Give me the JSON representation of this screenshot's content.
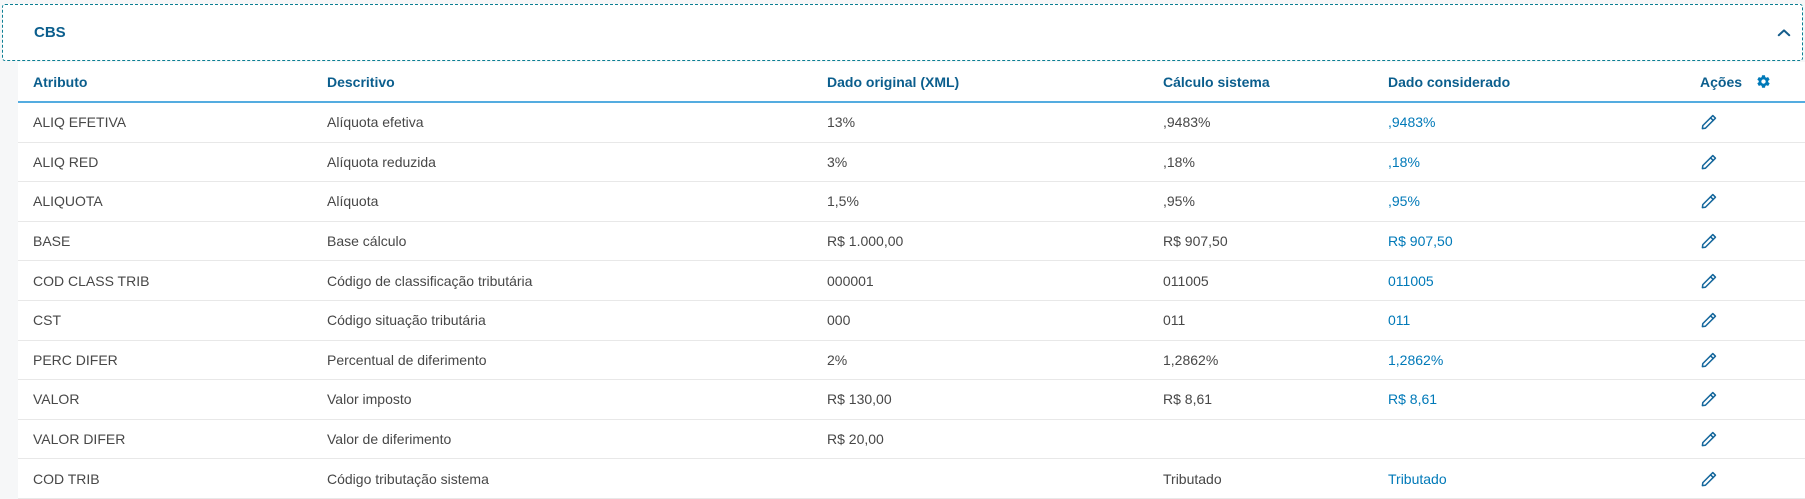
{
  "panel": {
    "title": "CBS"
  },
  "table": {
    "columns": [
      "Atributo",
      "Descritivo",
      "Dado original (XML)",
      "Cálculo sistema",
      "Dado considerado",
      "Ações"
    ],
    "rows": [
      {
        "atributo": "ALIQ EFETIVA",
        "descritivo": "Alíquota efetiva",
        "dado_original": "13%",
        "calculo_sistema": ",9483%",
        "dado_considerado": ",9483%"
      },
      {
        "atributo": "ALIQ RED",
        "descritivo": "Alíquota reduzida",
        "dado_original": "3%",
        "calculo_sistema": ",18%",
        "dado_considerado": ",18%"
      },
      {
        "atributo": "ALIQUOTA",
        "descritivo": "Alíquota",
        "dado_original": "1,5%",
        "calculo_sistema": ",95%",
        "dado_considerado": ",95%"
      },
      {
        "atributo": "BASE",
        "descritivo": "Base cálculo",
        "dado_original": "R$ 1.000,00",
        "calculo_sistema": "R$ 907,50",
        "dado_considerado": "R$ 907,50"
      },
      {
        "atributo": "COD CLASS TRIB",
        "descritivo": "Código de classificação tributária",
        "dado_original": "000001",
        "calculo_sistema": "011005",
        "dado_considerado": "011005"
      },
      {
        "atributo": "CST",
        "descritivo": "Código situação tributária",
        "dado_original": "000",
        "calculo_sistema": "011",
        "dado_considerado": "011"
      },
      {
        "atributo": "PERC DIFER",
        "descritivo": "Percentual de diferimento",
        "dado_original": "2%",
        "calculo_sistema": "1,2862%",
        "dado_considerado": "1,2862%"
      },
      {
        "atributo": "VALOR",
        "descritivo": "Valor imposto",
        "dado_original": "R$ 130,00",
        "calculo_sistema": "R$ 8,61",
        "dado_considerado": "R$ 8,61"
      },
      {
        "atributo": "VALOR DIFER",
        "descritivo": "Valor de diferimento",
        "dado_original": "R$ 20,00",
        "calculo_sistema": "",
        "dado_considerado": ""
      },
      {
        "atributo": "COD TRIB",
        "descritivo": "Código tributação sistema",
        "dado_original": "",
        "calculo_sistema": "Tributado",
        "dado_considerado": "Tributado"
      }
    ]
  },
  "icons": {
    "collapse": "chevron-up-icon",
    "settings": "gear-icon",
    "row_action": "edit-pencil-icon"
  },
  "colors": {
    "header_blue": "#0b5e8d",
    "link_blue": "#0079b8",
    "header_underline": "#54ace0",
    "focus_dashed_outline": "#0c7f93",
    "body_text": "#474747",
    "row_border": "#e8e8e8"
  }
}
